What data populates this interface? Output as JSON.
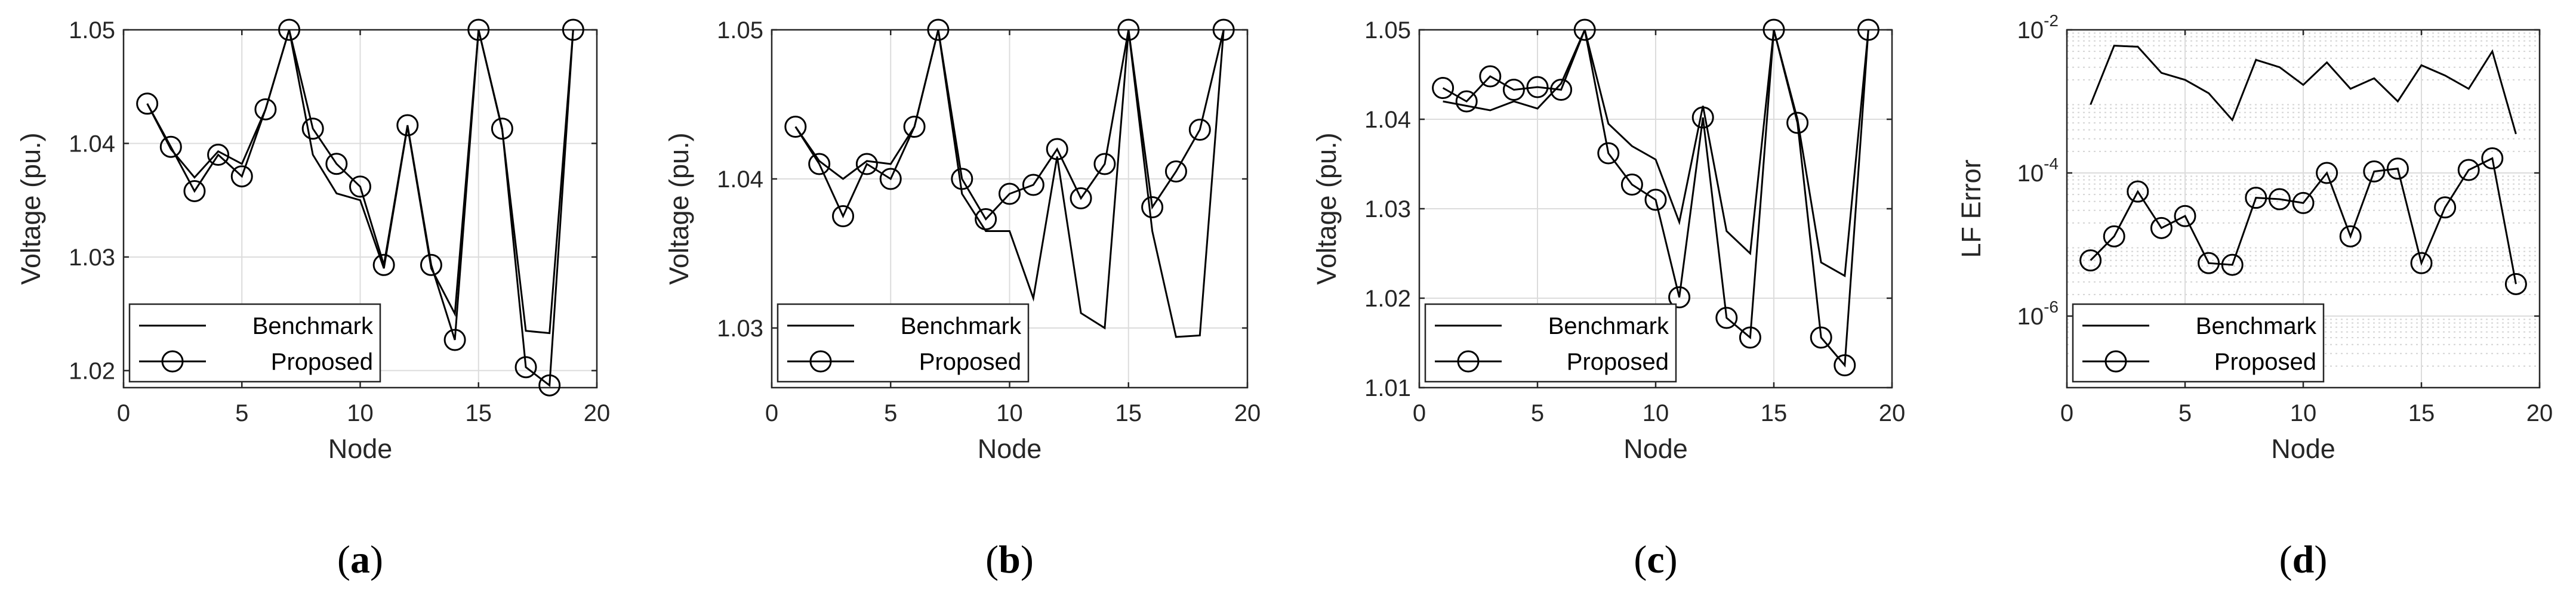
{
  "chart_data": [
    {
      "type": "line",
      "panel": "(a)",
      "caption": {
        "open": "(",
        "letter": "a",
        "close": ")"
      },
      "xlabel": "Node",
      "ylabel": "Voltage (pu.)",
      "scale": "linear",
      "xlim": [
        0,
        20
      ],
      "ylim": [
        1.0185,
        1.05
      ],
      "xticks": [
        0,
        5,
        10,
        15,
        20
      ],
      "xtick_labels": [
        "0",
        "5",
        "10",
        "15",
        "20"
      ],
      "yticks": [
        1.02,
        1.03,
        1.04,
        1.05
      ],
      "ytick_labels": [
        "1.02",
        "1.03",
        "1.04",
        "1.05"
      ],
      "grid": true,
      "legend_position": "bottom-left",
      "x": [
        1,
        2,
        3,
        4,
        5,
        6,
        7,
        8,
        9,
        10,
        11,
        12,
        13,
        14,
        15,
        16,
        17,
        18,
        19
      ],
      "series": [
        {
          "name": "Benchmark",
          "marker": "none",
          "values": [
            1.0435,
            1.0395,
            1.037,
            1.0393,
            1.0382,
            1.043,
            1.05,
            1.039,
            1.0356,
            1.035,
            1.029,
            1.0415,
            1.029,
            1.025,
            1.05,
            1.0412,
            1.0235,
            1.0233,
            1.05
          ]
        },
        {
          "name": "Proposed",
          "marker": "circle",
          "values": [
            1.0435,
            1.0397,
            1.0358,
            1.039,
            1.0371,
            1.043,
            1.05,
            1.0413,
            1.0382,
            1.0362,
            1.0293,
            1.0416,
            1.0293,
            1.0227,
            1.05,
            1.0413,
            1.0203,
            1.0187,
            1.05
          ]
        }
      ]
    },
    {
      "type": "line",
      "panel": "(b)",
      "caption": {
        "open": "(",
        "letter": "b",
        "close": ")"
      },
      "xlabel": "Node",
      "ylabel": "Voltage (pu.)",
      "scale": "linear",
      "xlim": [
        0,
        20
      ],
      "ylim": [
        1.026,
        1.05
      ],
      "xticks": [
        0,
        5,
        10,
        15,
        20
      ],
      "xtick_labels": [
        "0",
        "5",
        "10",
        "15",
        "20"
      ],
      "yticks": [
        1.03,
        1.04,
        1.05
      ],
      "ytick_labels": [
        "1.03",
        "1.04",
        "1.05"
      ],
      "grid": true,
      "legend_position": "bottom-left",
      "x": [
        1,
        2,
        3,
        4,
        5,
        6,
        7,
        8,
        9,
        10,
        11,
        12,
        13,
        14,
        15,
        16,
        17,
        18,
        19
      ],
      "series": [
        {
          "name": "Benchmark",
          "marker": "none",
          "values": [
            1.0435,
            1.0412,
            1.04,
            1.0412,
            1.041,
            1.0435,
            1.05,
            1.039,
            1.0365,
            1.0365,
            1.032,
            1.0415,
            1.031,
            1.03,
            1.05,
            1.0365,
            1.0294,
            1.0295,
            1.05
          ]
        },
        {
          "name": "Proposed",
          "marker": "circle",
          "values": [
            1.0435,
            1.041,
            1.0375,
            1.041,
            1.04,
            1.0435,
            1.05,
            1.04,
            1.0373,
            1.039,
            1.0396,
            1.042,
            1.0387,
            1.041,
            1.05,
            1.0381,
            1.0405,
            1.0433,
            1.05
          ]
        }
      ]
    },
    {
      "type": "line",
      "panel": "(c)",
      "caption": {
        "open": "(",
        "letter": "c",
        "close": ")"
      },
      "xlabel": "Node",
      "ylabel": "Voltage (pu.)",
      "scale": "linear",
      "xlim": [
        0,
        20
      ],
      "ylim": [
        1.01,
        1.05
      ],
      "xticks": [
        0,
        5,
        10,
        15,
        20
      ],
      "xtick_labels": [
        "0",
        "5",
        "10",
        "15",
        "20"
      ],
      "yticks": [
        1.01,
        1.02,
        1.03,
        1.04,
        1.05
      ],
      "ytick_labels": [
        "1.01",
        "1.02",
        "1.03",
        "1.04",
        "1.05"
      ],
      "grid": true,
      "legend_position": "bottom-left",
      "x": [
        1,
        2,
        3,
        4,
        5,
        6,
        7,
        8,
        9,
        10,
        11,
        12,
        13,
        14,
        15,
        16,
        17,
        18,
        19
      ],
      "series": [
        {
          "name": "Benchmark",
          "marker": "none",
          "values": [
            1.042,
            1.0415,
            1.041,
            1.042,
            1.0412,
            1.044,
            1.05,
            1.0395,
            1.037,
            1.0355,
            1.0285,
            1.0415,
            1.0275,
            1.025,
            1.05,
            1.04,
            1.024,
            1.0225,
            1.05
          ]
        },
        {
          "name": "Proposed",
          "marker": "circle",
          "values": [
            1.0435,
            1.042,
            1.0448,
            1.0433,
            1.0436,
            1.0433,
            1.05,
            1.0362,
            1.0327,
            1.031,
            1.0201,
            1.0402,
            1.0178,
            1.0156,
            1.05,
            1.0396,
            1.0156,
            1.0125,
            1.05
          ]
        }
      ]
    },
    {
      "type": "line",
      "panel": "(d)",
      "caption": {
        "open": "(",
        "letter": "d",
        "close": ")"
      },
      "xlabel": "Node",
      "ylabel": "LF Error",
      "scale": "log",
      "xlim": [
        0,
        20
      ],
      "ylim": [
        1e-07,
        0.01
      ],
      "xticks": [
        0,
        5,
        10,
        15,
        20
      ],
      "xtick_labels": [
        "0",
        "5",
        "10",
        "15",
        "20"
      ],
      "yticks": [
        1e-06,
        0.0001,
        0.01
      ],
      "ytick_labels": [
        {
          "base": "10",
          "exp": "-6"
        },
        {
          "base": "10",
          "exp": "-4"
        },
        {
          "base": "10",
          "exp": "-2"
        }
      ],
      "grid": true,
      "minor_grid": true,
      "legend_position": "bottom-left",
      "x": [
        1,
        2,
        3,
        4,
        5,
        6,
        7,
        8,
        9,
        10,
        11,
        12,
        13,
        14,
        15,
        16,
        17,
        18,
        19
      ],
      "series": [
        {
          "name": "Benchmark",
          "marker": "none",
          "values": [
            0.0009,
            0.006,
            0.0058,
            0.0025,
            0.002,
            0.0013,
            0.00055,
            0.0038,
            0.003,
            0.0017,
            0.0035,
            0.0015,
            0.0021,
            0.001,
            0.0032,
            0.0023,
            0.0015,
            0.005,
            0.00035
          ]
        },
        {
          "name": "Proposed",
          "marker": "circle",
          "values": [
            6e-06,
            1.3e-05,
            5.5e-05,
            1.7e-05,
            2.5e-05,
            5.5e-06,
            5.2e-06,
            4.5e-05,
            4.3e-05,
            3.8e-05,
            0.0001,
            1.3e-05,
            0.000105,
            0.000115,
            5.5e-06,
            3.3e-05,
            0.00011,
            0.00016,
            2.8e-06
          ]
        }
      ]
    }
  ]
}
